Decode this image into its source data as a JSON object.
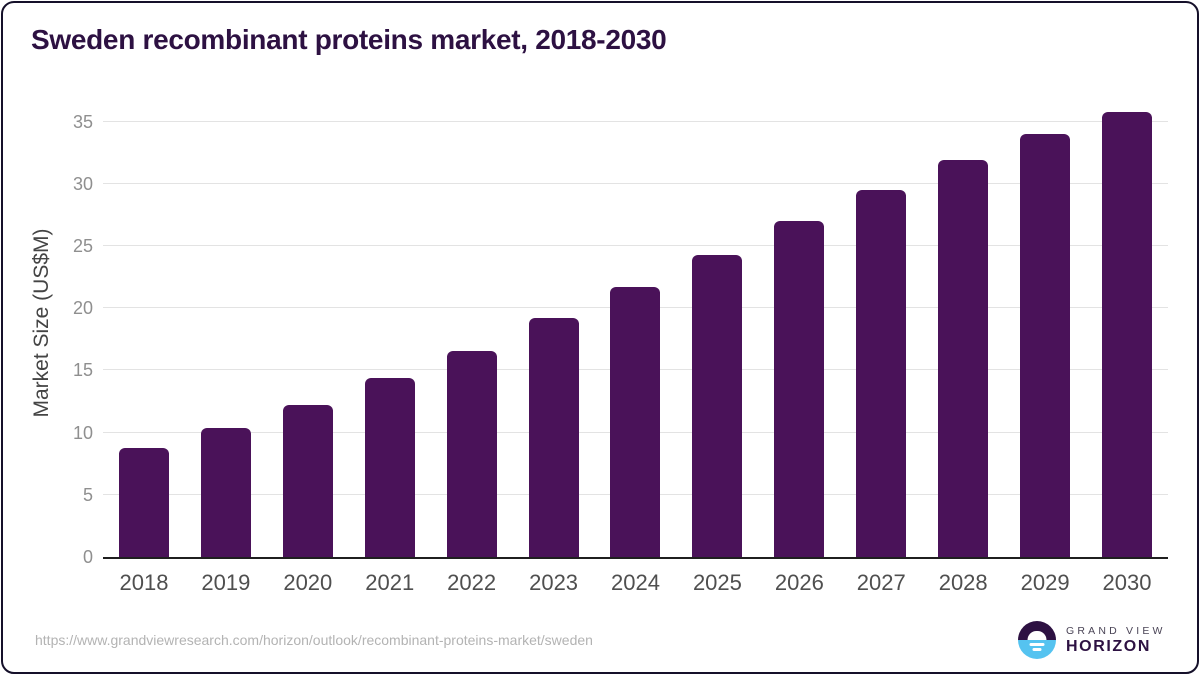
{
  "page": {
    "title": "Sweden recombinant proteins market, 2018-2030"
  },
  "chart_data": {
    "type": "bar",
    "title": "Sweden recombinant proteins market, 2018-2030",
    "categories": [
      "2018",
      "2019",
      "2020",
      "2021",
      "2022",
      "2023",
      "2024",
      "2025",
      "2026",
      "2027",
      "2028",
      "2029",
      "2030"
    ],
    "values": [
      8.8,
      10.4,
      12.2,
      14.4,
      16.6,
      19.2,
      21.7,
      24.3,
      27.0,
      29.5,
      31.9,
      34.0,
      35.8
    ],
    "xlabel": "",
    "ylabel": "Market Size (US$M)",
    "y_ticks": [
      0,
      5,
      10,
      15,
      20,
      25,
      30,
      35
    ],
    "ylim": [
      0,
      37.15
    ],
    "grid": "horizontal",
    "legend": "none",
    "bar_color": "#4a1259"
  },
  "footer": {
    "source_url": "https://www.grandviewresearch.com/horizon/outlook/recombinant-proteins-market/sweden",
    "logo": {
      "line1": "GRAND VIEW",
      "line2": "HORIZON"
    }
  },
  "colors": {
    "bar": "#4a1259",
    "title_text": "#2d1142",
    "y_tick_text": "#8f8f8f",
    "x_tick_text": "#4f4f4f",
    "axis_line": "#1f1f1f",
    "gridline": "#e3e3e3",
    "footer_text": "#b3b3b3",
    "logo_purple": "#2d1142",
    "logo_blue": "#55c3f0",
    "frame_border": "#15102a"
  }
}
